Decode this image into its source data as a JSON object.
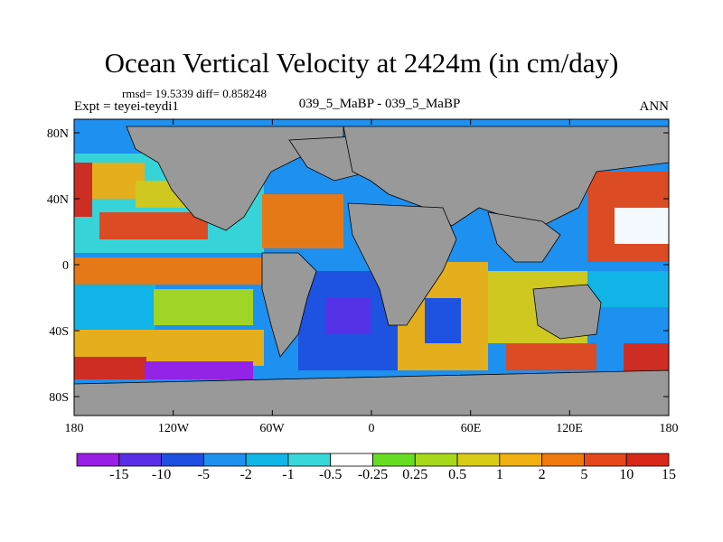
{
  "title": "Ocean Vertical Velocity at 2424m (in cm/day)",
  "stats": "rmsd= 19.5339 diff= 0.858248",
  "experiment": "Expt = teyei-teydi1",
  "center_label": "039_5_MaBP - 039_5_MaBP",
  "season": "ANN",
  "y_ticks": [
    "80N",
    "40N",
    "0",
    "40S",
    "80S"
  ],
  "x_ticks": [
    "180",
    "120W",
    "60W",
    "0",
    "60E",
    "120E",
    "180"
  ],
  "colorbar": {
    "labels": [
      "-15",
      "-10",
      "-5",
      "-2",
      "-1",
      "-0.5",
      "-0.25",
      "0.25",
      "0.5",
      "1",
      "2",
      "5",
      "10",
      "15"
    ],
    "colors": [
      "#9a1ee6",
      "#5a2ee6",
      "#1f4fe0",
      "#1e90f0",
      "#10b6e6",
      "#38d8d8",
      "#ffffff",
      "#66dd22",
      "#a8d81c",
      "#d8cc16",
      "#f0b012",
      "#f0780c",
      "#e6481a",
      "#d8281a"
    ]
  }
}
